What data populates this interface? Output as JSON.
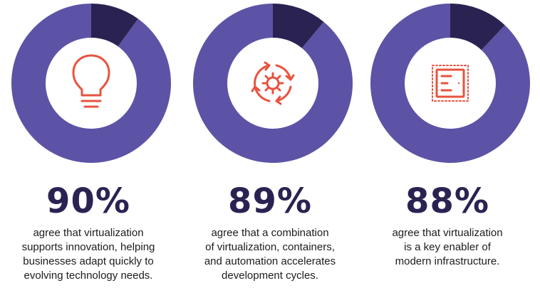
{
  "colors": {
    "filled": "#5c53a6",
    "remainder": "#2a2352",
    "hole": "#ffffff",
    "icon": "#e8533f"
  },
  "chart_data": [
    {
      "type": "pie",
      "variant": "donut",
      "values": [
        90,
        10
      ],
      "value_label": "90%",
      "icon": "lightbulb-icon",
      "caption_lines": [
        "agree that virtualization",
        "supports innovation, helping",
        "businesses adapt quickly to",
        "evolving technology needs."
      ]
    },
    {
      "type": "pie",
      "variant": "donut",
      "values": [
        89,
        11
      ],
      "value_label": "89%",
      "icon": "automation-cycle-icon",
      "caption_lines": [
        "agree that a combination",
        "of virtualization, containers,",
        "and automation accelerates",
        "development cycles."
      ]
    },
    {
      "type": "pie",
      "variant": "donut",
      "values": [
        88,
        12
      ],
      "value_label": "88%",
      "icon": "chip-icon",
      "caption_lines": [
        "agree that virtualization",
        "is a key enabler of",
        "modern infrastructure."
      ]
    }
  ]
}
